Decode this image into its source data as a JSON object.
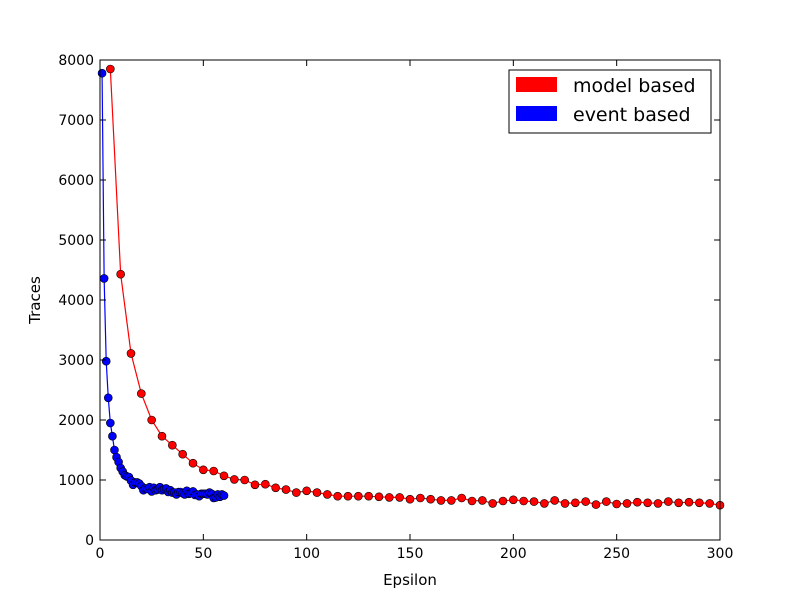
{
  "chart_data": {
    "type": "line",
    "xlabel": "Epsilon",
    "ylabel": "Traces",
    "xlim": [
      0,
      300
    ],
    "ylim": [
      0,
      8000
    ],
    "xticks": [
      0,
      50,
      100,
      150,
      200,
      250,
      300
    ],
    "yticks": [
      0,
      1000,
      2000,
      3000,
      4000,
      5000,
      6000,
      7000,
      8000
    ],
    "grid": false,
    "legend_position": "top-right",
    "series": [
      {
        "name": "model based",
        "color": "#ff0000",
        "x": [
          5,
          10,
          15,
          20,
          25,
          30,
          35,
          40,
          45,
          50,
          55,
          60,
          65,
          70,
          75,
          80,
          85,
          90,
          95,
          100,
          105,
          110,
          115,
          120,
          125,
          130,
          135,
          140,
          145,
          150,
          155,
          160,
          165,
          170,
          175,
          180,
          185,
          190,
          195,
          200,
          205,
          210,
          215,
          220,
          225,
          230,
          235,
          240,
          245,
          250,
          255,
          260,
          265,
          270,
          275,
          280,
          285,
          290,
          295,
          300
        ],
        "y": [
          7850,
          4430,
          3110,
          2440,
          2000,
          1730,
          1580,
          1430,
          1280,
          1170,
          1150,
          1070,
          1010,
          1000,
          920,
          930,
          870,
          840,
          790,
          820,
          790,
          760,
          730,
          730,
          730,
          730,
          720,
          710,
          710,
          680,
          700,
          680,
          660,
          660,
          700,
          650,
          660,
          610,
          650,
          670,
          650,
          640,
          610,
          660,
          610,
          620,
          640,
          590,
          640,
          600,
          610,
          630,
          620,
          610,
          640,
          620,
          630,
          620,
          610,
          580
        ]
      },
      {
        "name": "event based",
        "color": "#0000ff",
        "x": [
          1,
          2,
          3,
          4,
          5,
          6,
          7,
          8,
          9,
          10,
          11,
          12,
          13,
          14,
          15,
          16,
          17,
          18,
          19,
          20,
          21,
          22,
          23,
          24,
          25,
          26,
          27,
          28,
          29,
          30,
          31,
          32,
          33,
          34,
          35,
          36,
          37,
          38,
          39,
          40,
          41,
          42,
          43,
          44,
          45,
          46,
          47,
          48,
          49,
          50,
          51,
          52,
          53,
          54,
          55,
          56,
          57,
          58,
          59,
          60
        ],
        "y": [
          7780,
          4360,
          2980,
          2370,
          1950,
          1730,
          1500,
          1380,
          1300,
          1200,
          1140,
          1080,
          1060,
          1050,
          990,
          920,
          960,
          960,
          940,
          900,
          830,
          860,
          850,
          880,
          810,
          870,
          830,
          840,
          880,
          830,
          850,
          860,
          800,
          830,
          790,
          790,
          760,
          800,
          800,
          780,
          760,
          820,
          770,
          780,
          810,
          750,
          760,
          730,
          770,
          770,
          770,
          760,
          790,
          770,
          700,
          710,
          760,
          720,
          760,
          740
        ]
      }
    ]
  }
}
